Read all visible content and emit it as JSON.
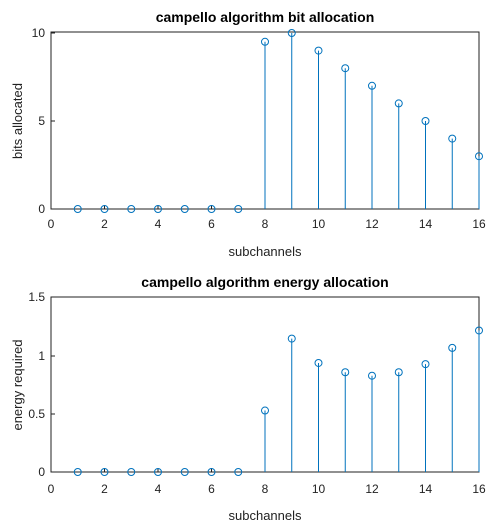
{
  "chart_data": [
    {
      "type": "stem",
      "title": "campello algorithm bit allocation",
      "xlabel": "subchannels",
      "ylabel": "bits allocated",
      "xlim": [
        0,
        16
      ],
      "ylim": [
        0,
        10
      ],
      "xticks": [
        0,
        2,
        4,
        6,
        8,
        10,
        12,
        14,
        16
      ],
      "yticks": [
        0,
        5,
        10
      ],
      "x": [
        1,
        2,
        3,
        4,
        5,
        6,
        7,
        8,
        9,
        10,
        11,
        12,
        13,
        14,
        15,
        16
      ],
      "values": [
        0,
        0,
        0,
        0,
        0,
        0,
        0,
        9.5,
        10,
        9,
        8,
        7,
        6,
        5,
        4,
        3
      ],
      "grid": false
    },
    {
      "type": "stem",
      "title": "campello algorithm energy allocation",
      "xlabel": "subchannels",
      "ylabel": "energy required",
      "xlim": [
        0,
        16
      ],
      "ylim": [
        0,
        1.5
      ],
      "xticks": [
        0,
        2,
        4,
        6,
        8,
        10,
        12,
        14,
        16
      ],
      "yticks": [
        0,
        0.5,
        1,
        1.5
      ],
      "x": [
        1,
        2,
        3,
        4,
        5,
        6,
        7,
        8,
        9,
        10,
        11,
        12,
        13,
        14,
        15,
        16
      ],
      "values": [
        0,
        0,
        0,
        0,
        0,
        0,
        0,
        0.53,
        1.15,
        0.94,
        0.86,
        0.83,
        0.86,
        0.93,
        1.07,
        1.22
      ],
      "grid": false
    }
  ],
  "colors": {
    "stem": "#0072BD",
    "axes": "#222222",
    "background": "#ffffff"
  }
}
